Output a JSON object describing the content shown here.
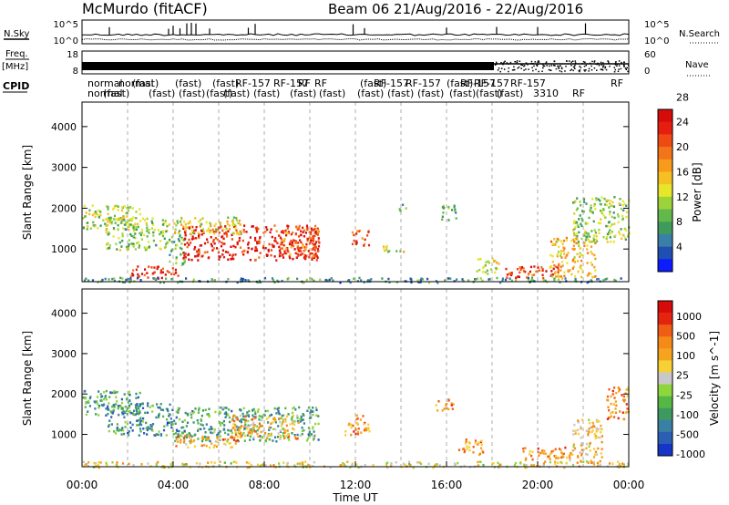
{
  "header": {
    "title": "McMurdo (fitACF)",
    "beam_date": "Beam 06  21/Aug/2016 - 22/Aug/2016"
  },
  "chart_data": [
    {
      "type": "line",
      "name": "noise-panel",
      "left_label": "N.Sky",
      "right_label": "N.Search",
      "left_ticks": [
        "10^5",
        "10^0"
      ],
      "right_ticks": [
        "10^5",
        "10^0"
      ]
    },
    {
      "type": "line",
      "name": "frequency-panel",
      "left_label": "Freq.",
      "left_unit": "[MHz]",
      "right_label": "Nave",
      "left_ticks": [
        "18",
        "8"
      ],
      "right_ticks": [
        "60",
        "0"
      ]
    },
    {
      "type": "table",
      "name": "cpid-row",
      "label": "CPID",
      "row1": [
        "normal",
        "normal",
        "(fast)",
        "(fast)",
        "(fast)",
        "RF-157",
        "RF-157",
        "RF",
        "RF",
        "(fast)",
        "RF-157",
        "RF-157",
        "(fast)",
        "RF-157",
        "RF-157",
        "RF-157",
        "RF"
      ],
      "row2": [
        "normal",
        "(fast)",
        "(fast)",
        "(fast)",
        "(fast)",
        "(fast)",
        "(fast)",
        "(fast)",
        "(fast)",
        "(fast)",
        "(fast)",
        "(fast)",
        "(fast)",
        "(fast)",
        "(fast)",
        "3310",
        "RF"
      ]
    },
    {
      "type": "heatmap",
      "name": "power-panel",
      "ylabel": "Slant Range [km]",
      "yticks": [
        1000,
        2000,
        3000,
        4000
      ],
      "ylim": [
        200,
        4600
      ],
      "colorbar_label": "Power [dB]",
      "colorbar_ticks": [
        4,
        8,
        12,
        16,
        20,
        24,
        28
      ],
      "colorbar_colors": [
        "#0c1cff",
        "#1f4fb0",
        "#3a7fa8",
        "#3f9b5c",
        "#62b84a",
        "#9bd43a",
        "#e6e62a",
        "#f6c022",
        "#f89a1c",
        "#f37519",
        "#ef4a14",
        "#e61e10",
        "#d80b0b"
      ],
      "blobs": [
        {
          "t": [
            0.0,
            2.6
          ],
          "r": [
            1500,
            2100
          ],
          "level": 0.45
        },
        {
          "t": [
            1.0,
            3.8
          ],
          "r": [
            1000,
            1800
          ],
          "level": 0.4
        },
        {
          "t": [
            3.8,
            4.5
          ],
          "r": [
            600,
            1500
          ],
          "level": 0.35
        },
        {
          "t": [
            4.4,
            10.4
          ],
          "r": [
            750,
            1600
          ],
          "level": 0.9
        },
        {
          "t": [
            8.5,
            10.4
          ],
          "r": [
            800,
            1550
          ],
          "level": 0.75
        },
        {
          "t": [
            4.0,
            7.0
          ],
          "r": [
            1400,
            1800
          ],
          "level": 0.5
        },
        {
          "t": [
            2.0,
            4.2
          ],
          "r": [
            300,
            600
          ],
          "level": 0.85
        },
        {
          "t": [
            11.8,
            12.6
          ],
          "r": [
            1100,
            1500
          ],
          "level": 0.8
        },
        {
          "t": [
            13.0,
            14.2
          ],
          "r": [
            950,
            1100
          ],
          "level": 0.5
        },
        {
          "t": [
            15.7,
            16.4
          ],
          "r": [
            1700,
            2100
          ],
          "level": 0.35
        },
        {
          "t": [
            13.8,
            14.2
          ],
          "r": [
            1950,
            2150
          ],
          "level": 0.3
        },
        {
          "t": [
            17.3,
            18.3
          ],
          "r": [
            400,
            800
          ],
          "level": 0.5
        },
        {
          "t": [
            18.5,
            21.0
          ],
          "r": [
            300,
            600
          ],
          "level": 0.85
        },
        {
          "t": [
            20.5,
            22.5
          ],
          "r": [
            300,
            1300
          ],
          "level": 0.6
        },
        {
          "t": [
            21.5,
            24.0
          ],
          "r": [
            1200,
            2300
          ],
          "level": 0.4
        },
        {
          "t": [
            0.0,
            24.0
          ],
          "r": [
            200,
            320
          ],
          "level": 0.25
        }
      ]
    },
    {
      "type": "heatmap",
      "name": "velocity-panel",
      "ylabel": "Slant Range [km]",
      "yticks": [
        1000,
        2000,
        3000,
        4000
      ],
      "ylim": [
        200,
        4600
      ],
      "colorbar_label": "Velocity [m s^-1]",
      "colorbar_ticks": [
        1000,
        500,
        100,
        25,
        -25,
        -100,
        -500,
        -1000
      ],
      "colorbar_colors": [
        "#1535c8",
        "#2c5fb4",
        "#3a80a4",
        "#3d9960",
        "#55b845",
        "#8fd63c",
        "#c8c8c8",
        "#f7d034",
        "#f6a41f",
        "#f58a18",
        "#f05d14",
        "#e5240f",
        "#d80b0b"
      ],
      "blobs": [
        {
          "t": [
            0.0,
            2.6
          ],
          "r": [
            1500,
            2100
          ],
          "level": 0.3
        },
        {
          "t": [
            1.0,
            4.0
          ],
          "r": [
            1000,
            1800
          ],
          "level": 0.25
        },
        {
          "t": [
            4.0,
            10.4
          ],
          "r": [
            850,
            1700
          ],
          "level": 0.3
        },
        {
          "t": [
            4.0,
            7.0
          ],
          "r": [
            700,
            1000
          ],
          "level": 0.7
        },
        {
          "t": [
            6.5,
            9.5
          ],
          "r": [
            900,
            1500
          ],
          "level": 0.65
        },
        {
          "t": [
            11.5,
            12.6
          ],
          "r": [
            1000,
            1500
          ],
          "level": 0.7
        },
        {
          "t": [
            15.5,
            16.3
          ],
          "r": [
            1600,
            1900
          ],
          "level": 0.75
        },
        {
          "t": [
            16.5,
            17.6
          ],
          "r": [
            500,
            900
          ],
          "level": 0.7
        },
        {
          "t": [
            19.3,
            21.5
          ],
          "r": [
            300,
            700
          ],
          "level": 0.7
        },
        {
          "t": [
            21.5,
            22.8
          ],
          "r": [
            300,
            1400
          ],
          "level": 0.6
        },
        {
          "t": [
            23.0,
            24.0
          ],
          "r": [
            1400,
            2200
          ],
          "level": 0.75
        },
        {
          "t": [
            0.0,
            24.0
          ],
          "r": [
            200,
            350
          ],
          "level": 0.55
        }
      ]
    }
  ],
  "xaxis": {
    "ticks": [
      "00:00",
      "04:00",
      "08:00",
      "12:00",
      "16:00",
      "20:00",
      "00:00"
    ],
    "label": "Time UT"
  }
}
